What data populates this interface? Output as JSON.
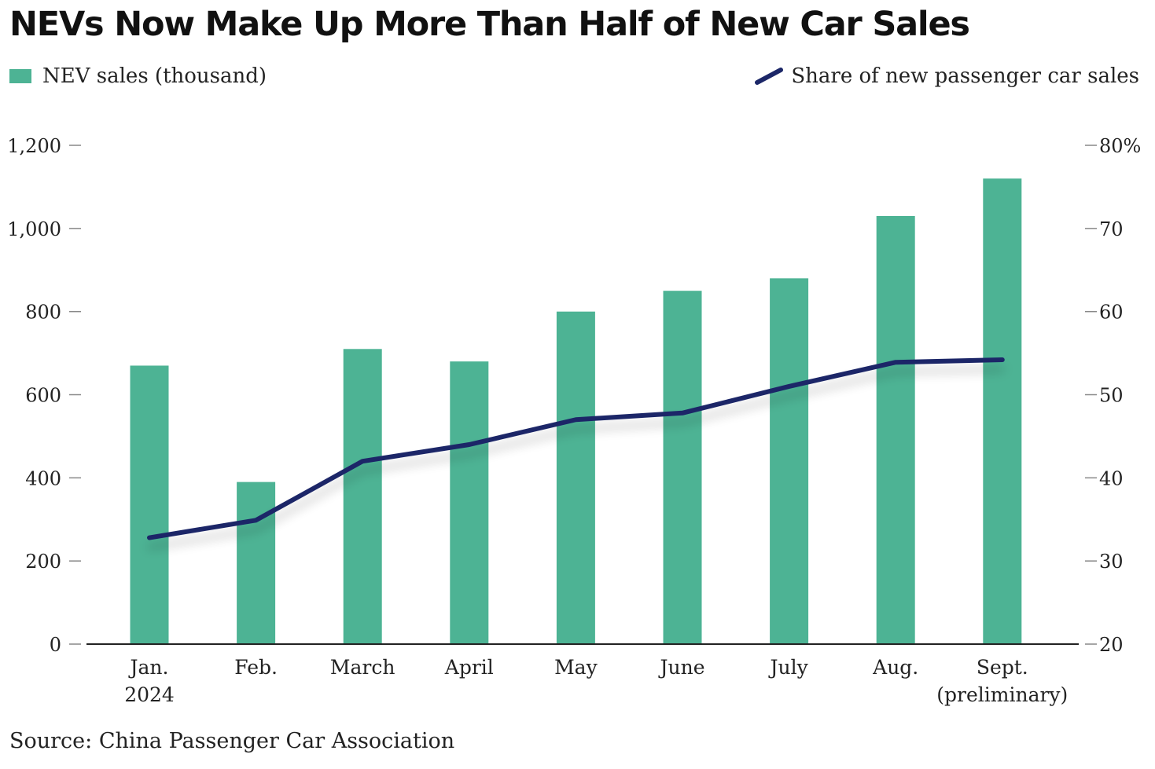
{
  "title": "NEVs Now Make Up More Than Half of New Car Sales",
  "source": "Source: China Passenger Car Association",
  "colors": {
    "bar": "#4db394",
    "line": "#1c2768",
    "axis": "#222222",
    "tick": "#888888"
  },
  "chart_data": {
    "type": "bar",
    "title": "NEVs Now Make Up More Than Half of New Car Sales",
    "categories": [
      [
        "Jan.",
        "2024"
      ],
      [
        "Feb."
      ],
      [
        "March"
      ],
      [
        "April"
      ],
      [
        "May"
      ],
      [
        "June"
      ],
      [
        "July"
      ],
      [
        "Aug."
      ],
      [
        "Sept.",
        "(preliminary)"
      ]
    ],
    "series": [
      {
        "name": "NEV sales (thousand)",
        "type": "bar",
        "axis": "left",
        "values": [
          670,
          390,
          710,
          680,
          800,
          850,
          880,
          1030,
          1120
        ]
      },
      {
        "name": "Share of new passenger car sales",
        "type": "line",
        "axis": "right",
        "values": [
          32.8,
          34.9,
          42.0,
          44.0,
          47.0,
          47.8,
          51.0,
          53.9,
          54.2
        ]
      }
    ],
    "y_left": {
      "min": 0,
      "max": 1200,
      "ticks": [
        0,
        200,
        400,
        600,
        800,
        1000,
        1200
      ],
      "tick_labels": [
        "0",
        "200",
        "400",
        "600",
        "800",
        "1,000",
        "1,200"
      ]
    },
    "y_right": {
      "min": 20,
      "max": 80,
      "ticks": [
        20,
        30,
        40,
        50,
        60,
        70,
        80
      ],
      "tick_labels": [
        "20",
        "30",
        "40",
        "50",
        "60",
        "70",
        "80%"
      ]
    },
    "legend_position": "top",
    "grid": false
  }
}
